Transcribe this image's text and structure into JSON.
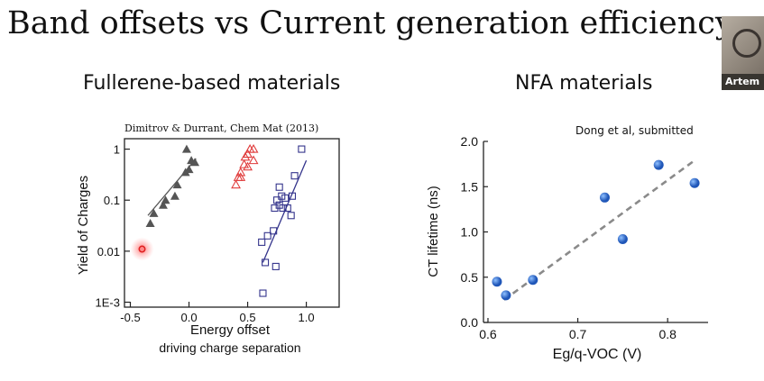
{
  "slide": {
    "title": "Band offsets vs Current generation efficiency",
    "left_subtitle": "Fullerene-based materials",
    "right_subtitle": "NFA materials"
  },
  "participant": {
    "name": "Artem"
  },
  "chart_data": [
    {
      "type": "scatter",
      "citation": "Dimitrov & Durrant, Chem Mat (2013)",
      "xlabel": "Energy offset",
      "xlabel2": "driving charge separation",
      "ylabel": "Yield of Charges",
      "y_scale": "log",
      "xlim": [
        -0.55,
        1.28
      ],
      "ylim": [
        0.0008,
        1.6
      ],
      "x_ticks": [
        -0.5,
        0.0,
        0.5,
        1.0
      ],
      "x_tick_labels": [
        "-0.5",
        "0.0",
        "0.5",
        "1.0"
      ],
      "y_ticks": [
        1,
        0.1,
        0.01,
        0.001
      ],
      "y_tick_labels": [
        "1",
        "0.1",
        "0.01",
        "1E-3"
      ],
      "series": [
        {
          "marker": "filled-triangle",
          "color": "#555555",
          "points": [
            [
              -0.33,
              0.035
            ],
            [
              -0.3,
              0.055
            ],
            [
              -0.22,
              0.08
            ],
            [
              -0.2,
              0.1
            ],
            [
              -0.12,
              0.12
            ],
            [
              -0.1,
              0.2
            ],
            [
              -0.03,
              0.35
            ],
            [
              0.0,
              0.4
            ],
            [
              0.02,
              0.6
            ],
            [
              -0.02,
              1.0
            ],
            [
              0.05,
              0.55
            ]
          ],
          "fit": [
            [
              -0.35,
              0.05
            ],
            [
              0.06,
              0.65
            ]
          ]
        },
        {
          "marker": "open-triangle",
          "color": "#e03c3c",
          "points": [
            [
              0.4,
              0.2
            ],
            [
              0.42,
              0.28
            ],
            [
              0.44,
              0.35
            ],
            [
              0.47,
              0.5
            ],
            [
              0.48,
              0.7
            ],
            [
              0.5,
              0.8
            ],
            [
              0.52,
              1.0
            ],
            [
              0.55,
              1.0
            ],
            [
              0.55,
              0.6
            ],
            [
              0.44,
              0.28
            ],
            [
              0.5,
              0.45
            ]
          ]
        },
        {
          "marker": "open-square",
          "color": "#34348c",
          "points": [
            [
              0.62,
              0.015
            ],
            [
              0.65,
              0.006
            ],
            [
              0.67,
              0.02
            ],
            [
              0.72,
              0.025
            ],
            [
              0.74,
              0.005
            ],
            [
              0.73,
              0.07
            ],
            [
              0.75,
              0.1
            ],
            [
              0.77,
              0.08
            ],
            [
              0.79,
              0.12
            ],
            [
              0.8,
              0.07
            ],
            [
              0.84,
              0.07
            ],
            [
              0.87,
              0.05
            ],
            [
              0.88,
              0.12
            ],
            [
              0.9,
              0.3
            ],
            [
              0.96,
              1.0
            ],
            [
              0.63,
              0.0015
            ],
            [
              0.77,
              0.18
            ],
            [
              0.82,
              0.11
            ]
          ],
          "fit": [
            [
              0.63,
              0.006
            ],
            [
              1.0,
              0.6
            ]
          ]
        },
        {
          "marker": "highlight-circle",
          "color": "#e02020",
          "points": [
            [
              -0.4,
              0.011
            ]
          ]
        }
      ]
    },
    {
      "type": "scatter",
      "citation": "Dong et al, submitted",
      "xlabel": "Eg/q-VOC (V)",
      "ylabel": "CT lifetime (ns)",
      "xlim": [
        0.595,
        0.845
      ],
      "ylim": [
        0.0,
        2.0
      ],
      "x_ticks": [
        0.6,
        0.7,
        0.8
      ],
      "x_tick_labels": [
        "0.6",
        "0.7",
        "0.8"
      ],
      "y_ticks": [
        0.0,
        0.5,
        1.0,
        1.5,
        2.0
      ],
      "y_tick_labels": [
        "0.0",
        "0.5",
        "1.0",
        "1.5",
        "2.0"
      ],
      "series": [
        {
          "marker": "filled-circle",
          "color": "#2f6fd0",
          "points": [
            [
              0.61,
              0.45
            ],
            [
              0.62,
              0.3
            ],
            [
              0.65,
              0.47
            ],
            [
              0.73,
              1.38
            ],
            [
              0.75,
              0.92
            ],
            [
              0.79,
              1.74
            ],
            [
              0.83,
              1.54
            ]
          ],
          "fit": [
            [
              0.618,
              0.25
            ],
            [
              0.83,
              1.79
            ]
          ]
        }
      ]
    }
  ]
}
